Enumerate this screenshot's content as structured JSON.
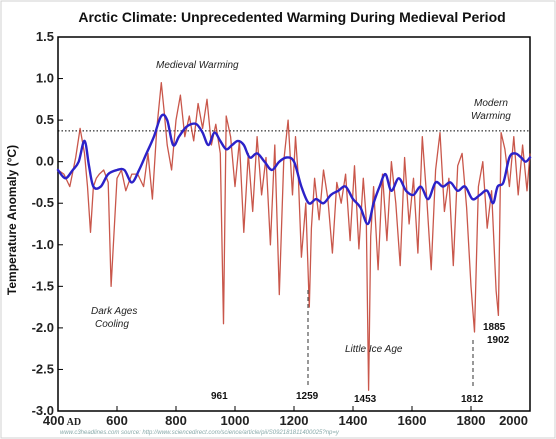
{
  "chart_data": {
    "type": "line",
    "title": "Arctic Climate: Unprecedented Warming During Medieval Period",
    "ylabel": "Temperature Anomaly (°C)",
    "xlabel": "",
    "xlim": [
      400,
      2000
    ],
    "ylim": [
      -3.0,
      1.5
    ],
    "x_ticks": [
      400,
      600,
      800,
      1000,
      1200,
      1400,
      1600,
      1800,
      2000
    ],
    "x_tick_labels": [
      "400",
      "600",
      "800",
      "1000",
      "1200",
      "1400",
      "1600",
      "1800",
      "2000"
    ],
    "x_first_suffix": "AD",
    "y_ticks": [
      1.5,
      1.0,
      0.5,
      0.0,
      -0.5,
      -1.0,
      -1.5,
      -2.0,
      -2.5,
      -3.0
    ],
    "y_tick_labels": [
      "1.5",
      "1.0",
      "0.5",
      "0.0",
      "-0.5",
      "-1.0",
      "-1.5",
      "-2.0",
      "-2.5",
      "-3.0"
    ],
    "reference_line": 0.37,
    "grid": false,
    "series": [
      {
        "role": "annual",
        "color": "#c0392b",
        "x": [
          400,
          420,
          440,
          460,
          475,
          490,
          500,
          510,
          520,
          530,
          540,
          555,
          570,
          580,
          600,
          615,
          630,
          650,
          670,
          690,
          705,
          720,
          735,
          750,
          760,
          770,
          785,
          800,
          815,
          830,
          845,
          860,
          875,
          890,
          905,
          920,
          935,
          950,
          961,
          970,
          985,
          1000,
          1015,
          1030,
          1045,
          1060,
          1075,
          1090,
          1105,
          1120,
          1135,
          1150,
          1165,
          1180,
          1195,
          1205,
          1215,
          1225,
          1240,
          1252,
          1259,
          1270,
          1285,
          1300,
          1315,
          1330,
          1345,
          1360,
          1375,
          1390,
          1405,
          1420,
          1435,
          1445,
          1453,
          1460,
          1470,
          1485,
          1500,
          1515,
          1530,
          1545,
          1560,
          1575,
          1590,
          1605,
          1620,
          1635,
          1650,
          1665,
          1680,
          1695,
          1710,
          1725,
          1740,
          1755,
          1770,
          1785,
          1800,
          1812,
          1825,
          1840,
          1855,
          1870,
          1885,
          1893,
          1902,
          1915,
          1930,
          1945,
          1960,
          1975,
          1990,
          2000
        ],
        "y": [
          -0.1,
          -0.15,
          -0.3,
          0.05,
          0.4,
          0.1,
          -0.3,
          -0.85,
          -0.3,
          -0.2,
          -0.15,
          -0.1,
          -0.25,
          -1.5,
          -0.2,
          -0.1,
          -0.35,
          -0.15,
          -0.15,
          -0.3,
          0.1,
          -0.45,
          0.4,
          0.95,
          0.6,
          0.2,
          -0.1,
          0.5,
          0.8,
          0.3,
          0.55,
          0.25,
          0.7,
          0.4,
          0.75,
          0.2,
          0.45,
          0.1,
          -1.95,
          0.55,
          0.3,
          -0.3,
          0.25,
          -0.85,
          0.1,
          -0.6,
          0.3,
          -0.4,
          0.05,
          -1.0,
          0.2,
          -1.6,
          0.0,
          0.5,
          -0.4,
          0.3,
          -0.2,
          -1.15,
          -0.5,
          -1.75,
          -0.8,
          -0.2,
          -0.7,
          -0.1,
          -0.45,
          -1.1,
          -0.25,
          -0.5,
          -0.15,
          -0.95,
          -0.05,
          -1.05,
          -0.2,
          -0.7,
          -2.75,
          -0.9,
          -0.3,
          -1.3,
          -0.15,
          -0.95,
          0.0,
          -0.5,
          -1.25,
          0.05,
          -0.75,
          -0.2,
          -1.1,
          0.3,
          -0.45,
          -1.3,
          -0.1,
          0.35,
          -0.6,
          -0.2,
          -1.25,
          -0.05,
          0.1,
          -0.55,
          -1.5,
          -2.05,
          -0.3,
          0.0,
          -0.8,
          -0.35,
          -1.55,
          -1.85,
          0.35,
          0.15,
          -0.3,
          0.3,
          -0.4,
          0.2,
          -0.35,
          0.1
        ]
      },
      {
        "role": "smoothed",
        "color": "#2c22c8",
        "x": [
          400,
          425,
          450,
          470,
          490,
          505,
          520,
          545,
          570,
          600,
          625,
          650,
          675,
          700,
          725,
          750,
          770,
          790,
          810,
          830,
          850,
          870,
          890,
          910,
          930,
          950,
          970,
          990,
          1010,
          1030,
          1050,
          1075,
          1100,
          1125,
          1150,
          1175,
          1200,
          1225,
          1250,
          1275,
          1300,
          1325,
          1350,
          1375,
          1400,
          1425,
          1450,
          1470,
          1490,
          1510,
          1530,
          1555,
          1580,
          1605,
          1630,
          1655,
          1680,
          1705,
          1730,
          1755,
          1780,
          1805,
          1830,
          1855,
          1875,
          1890,
          1910,
          1930,
          1950,
          1970,
          1985,
          2000
        ],
        "y": [
          -0.1,
          -0.2,
          -0.1,
          0.0,
          0.25,
          -0.05,
          -0.3,
          -0.3,
          -0.15,
          -0.1,
          -0.1,
          -0.25,
          -0.1,
          0.1,
          0.3,
          0.55,
          0.5,
          0.2,
          0.3,
          0.4,
          0.45,
          0.45,
          0.35,
          0.2,
          0.35,
          0.25,
          0.15,
          0.2,
          0.25,
          0.2,
          0.05,
          0.1,
          0.0,
          -0.1,
          0.0,
          0.05,
          0.0,
          -0.3,
          -0.5,
          -0.45,
          -0.5,
          -0.4,
          -0.35,
          -0.3,
          -0.45,
          -0.55,
          -0.75,
          -0.5,
          -0.3,
          -0.15,
          -0.35,
          -0.2,
          -0.35,
          -0.4,
          -0.3,
          -0.45,
          -0.25,
          -0.3,
          -0.25,
          -0.35,
          -0.3,
          -0.45,
          -0.4,
          -0.35,
          -0.5,
          -0.3,
          -0.25,
          0.05,
          0.1,
          0.05,
          0.0,
          0.05
        ]
      }
    ],
    "annotations": {
      "medieval": "Medieval Warming",
      "modern_1": "Modern",
      "modern_2": "Warming",
      "dark_1": "Dark Ages",
      "dark_2": "Cooling",
      "little_ice": "Little Ice Age",
      "y961": "961",
      "y1259": "1259",
      "y1453": "1453",
      "y1812": "1812",
      "y1885": "1885",
      "y1902": "1902"
    },
    "source_note": "www.c3headlines.com source: http://www.sciencedirect.com/science/article/pii/S092181811400025?np=y"
  }
}
